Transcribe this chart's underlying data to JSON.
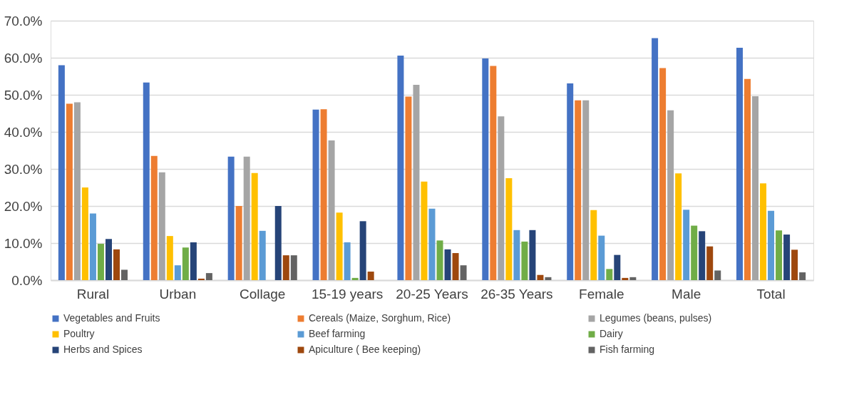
{
  "chart_data": {
    "type": "bar",
    "categories": [
      "Rural",
      "Urban",
      "Collage",
      "15-19 years",
      "20-25 Years",
      "26-35 Years",
      "Female",
      "Male",
      "Total"
    ],
    "series": [
      {
        "name": "Vegetables and Fruits",
        "color": "#4472c4",
        "values": [
          58.0,
          53.3,
          33.3,
          46.0,
          60.6,
          59.8,
          53.1,
          65.3,
          62.7
        ]
      },
      {
        "name": "Cereals (Maize, Sorghum, Rice)",
        "color": "#ed7d31",
        "values": [
          47.6,
          33.5,
          20.0,
          46.1,
          49.5,
          57.8,
          48.5,
          57.2,
          54.3
        ]
      },
      {
        "name": "Legumes (beans, pulses)",
        "color": "#a5a5a5",
        "values": [
          48.0,
          29.1,
          33.3,
          37.7,
          52.7,
          44.2,
          48.5,
          45.8,
          49.6
        ]
      },
      {
        "name": "Poultry",
        "color": "#ffc000",
        "values": [
          25.0,
          11.9,
          28.9,
          18.2,
          26.6,
          27.5,
          18.9,
          28.8,
          26.1
        ]
      },
      {
        "name": "Beef farming",
        "color": "#5b9bd5",
        "values": [
          18.0,
          4.0,
          13.3,
          10.2,
          19.3,
          13.5,
          12.0,
          19.0,
          18.7
        ]
      },
      {
        "name": "Dairy",
        "color": "#70ad47",
        "values": [
          9.8,
          8.8,
          0,
          0.6,
          10.7,
          10.4,
          3.0,
          14.7,
          13.4
        ]
      },
      {
        "name": "Herbs and Spices",
        "color": "#264478",
        "values": [
          11.1,
          10.2,
          20.0,
          15.9,
          8.3,
          13.5,
          6.8,
          13.2,
          12.3
        ]
      },
      {
        "name": "Apiculture ( Bee keeping)",
        "color": "#9e480e",
        "values": [
          8.3,
          0.4,
          6.7,
          2.3,
          7.3,
          1.4,
          0.6,
          9.1,
          8.2
        ]
      },
      {
        "name": "Fish farming",
        "color": "#636363",
        "values": [
          2.8,
          1.9,
          6.7,
          0,
          4.0,
          0.8,
          0.8,
          2.6,
          2.1
        ]
      }
    ],
    "ylim": [
      0,
      70
    ],
    "yticks": [
      {
        "value": 0,
        "label": "0.0%"
      },
      {
        "value": 10,
        "label": "10.0%"
      },
      {
        "value": 20,
        "label": "20.0%"
      },
      {
        "value": 30,
        "label": "30.0%"
      },
      {
        "value": 40,
        "label": "40.0%"
      },
      {
        "value": 50,
        "label": "50.0%"
      },
      {
        "value": 60,
        "label": "60.0%"
      },
      {
        "value": 70,
        "label": "70.0%"
      }
    ],
    "grid": "y",
    "legend": "bottom"
  }
}
